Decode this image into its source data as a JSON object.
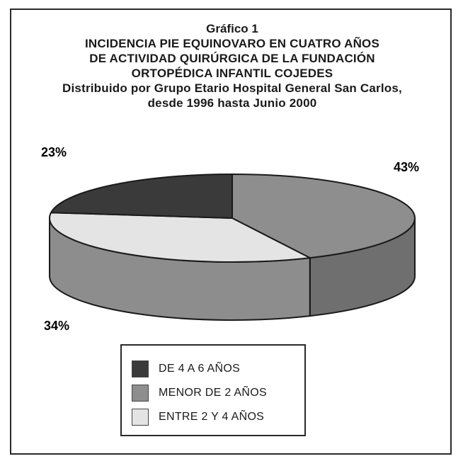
{
  "figure_label": "Gráfico 1",
  "title_lines": [
    "INCIDENCIA PIE EQUINOVARO EN CUATRO AÑOS",
    "DE ACTIVIDAD QUIRÚRGICA DE LA FUNDACIÓN",
    "ORTOPÉDICA INFANTIL COJEDES"
  ],
  "subtitle_lines": [
    "Distribuido por Grupo Etario Hospital General San Carlos,",
    "desde 1996 hasta Junio 2000"
  ],
  "chart_data": {
    "type": "pie",
    "style": "3d-exploded-tilted",
    "title": "INCIDENCIA PIE EQUINOVARO EN CUATRO AÑOS DE ACTIVIDAD QUIRÚRGICA DE LA FUNDACIÓN ORTOPÉDICA INFANTIL COJEDES",
    "subtitle": "Distribuido por Grupo Etario Hospital General San Carlos, desde 1996 hasta Junio 2000",
    "unit": "%",
    "slices": [
      {
        "label": "DE 4 A 6 AÑOS",
        "value": 23,
        "value_label": "23%",
        "color": "#3a3a3a"
      },
      {
        "label": "MENOR DE 2 AÑOS",
        "value": 43,
        "value_label": "43%",
        "color": "#8e8e8e"
      },
      {
        "label": "ENTRE 2 Y 4 AÑOS",
        "value": 34,
        "value_label": "34%",
        "color": "#e4e4e4"
      }
    ],
    "legend_position": "bottom-center"
  }
}
